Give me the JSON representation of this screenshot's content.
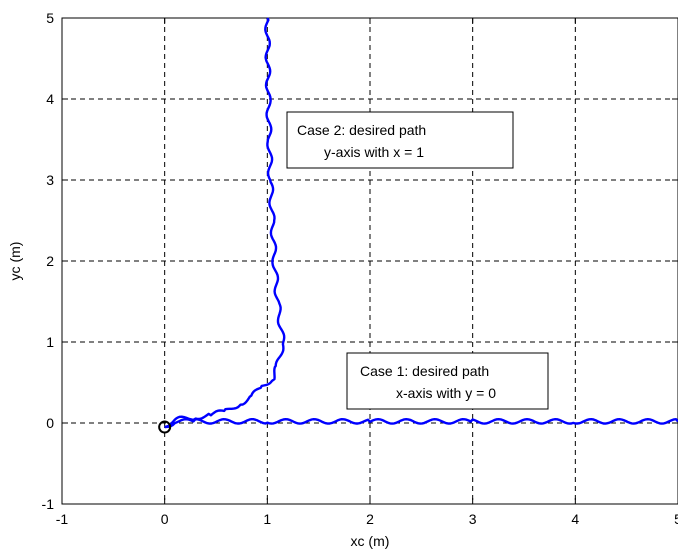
{
  "chart_data": {
    "type": "line",
    "xlabel": "xc (m)",
    "ylabel": "yc (m)",
    "xlim": [
      -1,
      5
    ],
    "ylim": [
      -1,
      5
    ],
    "xticks": [
      "-1",
      "0",
      "1",
      "2",
      "3",
      "4",
      "5"
    ],
    "yticks": [
      "-1",
      "0",
      "1",
      "2",
      "3",
      "4",
      "5"
    ],
    "grid": true,
    "line_color": "#0000ff",
    "start_marker": {
      "x": 0,
      "y": -0.05,
      "color": "#000000"
    },
    "series": [
      {
        "x": [
          0,
          0.1,
          0.3,
          1,
          2,
          3,
          4,
          5
        ],
        "y": [
          -0.05,
          0.02,
          0.02,
          0.02,
          0.02,
          0.02,
          0.02,
          0.02
        ]
      },
      {
        "x": [
          0,
          0.05,
          0.15,
          0.3,
          0.45,
          0.6,
          0.75,
          0.85,
          0.95,
          1.05,
          1.1,
          1.15,
          1.1,
          1.07,
          1.05,
          1.03,
          1.02,
          1.01,
          1.0
        ],
        "y": [
          -0.05,
          0.0,
          0.05,
          0.07,
          0.1,
          0.15,
          0.25,
          0.33,
          0.45,
          0.55,
          0.7,
          1.0,
          1.5,
          2.0,
          2.5,
          3.0,
          3.5,
          4.0,
          5.0
        ]
      }
    ],
    "annotations": [
      {
        "line1": "Case 2: desired path",
        "line2": "y-axis with x = 1"
      },
      {
        "line1": "Case 1: desired path",
        "line2": "x-axis with y = 0"
      }
    ]
  }
}
